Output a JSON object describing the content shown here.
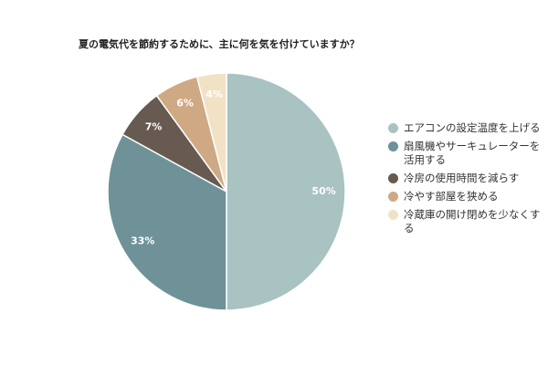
{
  "chart_data": {
    "type": "pie",
    "title": "夏の電気代を節約するために、主に何を気を付けていますか？",
    "categories": [
      "エアコンの設定温度を上げる",
      "扇風機やサーキュレーターを活用する",
      "冷房の使用時間を減らす",
      "冷やす部屋を狭める",
      "冷蔵庫の開け閉めを少なくする"
    ],
    "values": [
      50,
      33,
      7,
      6,
      4
    ],
    "value_labels": [
      "50%",
      "33%",
      "7%",
      "6%",
      "4%"
    ],
    "colors": [
      "#a9c2c2",
      "#6e9298",
      "#675a50",
      "#cfa983",
      "#f1e2c6"
    ],
    "legend_position": "right"
  }
}
